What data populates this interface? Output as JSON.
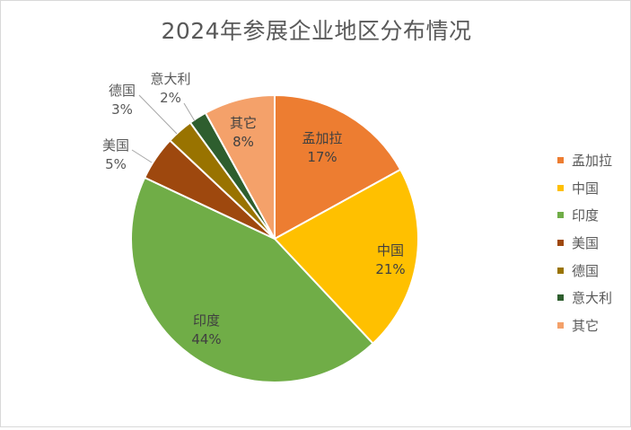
{
  "chart_data": {
    "type": "pie",
    "title": "2024年参展企业地区分布情况",
    "legend_position": "right",
    "slices": [
      {
        "label": "孟加拉",
        "value": 17,
        "value_label": "17%",
        "color": "#ED7D31"
      },
      {
        "label": "中国",
        "value": 21,
        "value_label": "21%",
        "color": "#FFC000"
      },
      {
        "label": "印度",
        "value": 44,
        "value_label": "44%",
        "color": "#70AD47"
      },
      {
        "label": "美国",
        "value": 5,
        "value_label": "5%",
        "color": "#9E480E"
      },
      {
        "label": "德国",
        "value": 3,
        "value_label": "3%",
        "color": "#997300"
      },
      {
        "label": "意大利",
        "value": 2,
        "value_label": "2%",
        "color": "#264478"
      },
      {
        "label": "其它",
        "value": 8,
        "value_label": "8%",
        "color": "#F4A16A"
      }
    ]
  }
}
